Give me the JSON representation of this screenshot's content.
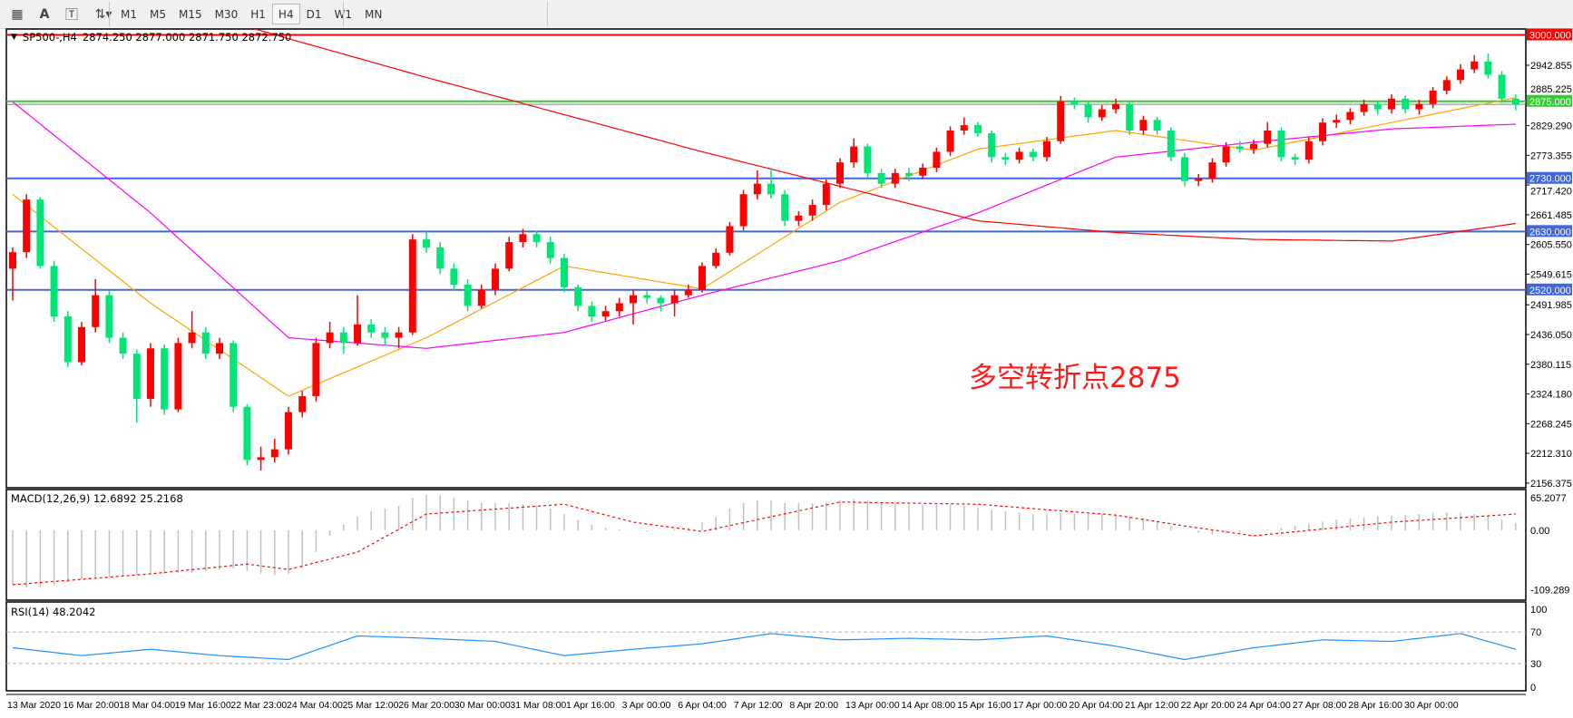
{
  "toolbar": {
    "icons": [
      "grid-fibo-icon",
      "text-a-icon",
      "text-label-icon",
      "arrows-icon"
    ],
    "timeframes": [
      "M1",
      "M5",
      "M15",
      "M30",
      "H1",
      "H4",
      "D1",
      "W1",
      "MN"
    ],
    "active_timeframe": "H4"
  },
  "header": {
    "symbol": "SP500-,H4",
    "ohlc": "2874.250 2877.000 2871.750 2872.750"
  },
  "annotation": "多空转折点2875",
  "macd_label": "MACD(12,26,9) 12.6892 25.2168",
  "rsi_label": "RSI(14) 48.2042",
  "colors": {
    "bull": "#ff0000",
    "bear": "#00e676",
    "ma_fast": "#ffa500",
    "ma_mid": "#ff00ff",
    "ma_slow": "#ff0000",
    "level_blue": "#3f66dc",
    "level_green": "#33cc33",
    "level_red": "#ff0000",
    "macd_hist": "#c0c0c0",
    "macd_signal": "#ff0000",
    "rsi": "#1e90ff"
  },
  "chart_data": {
    "type": "candlestick",
    "symbol": "SP500-",
    "timeframe": "H4",
    "price_ticks": [
      "2942.855",
      "2885.225",
      "2829.290",
      "2773.355",
      "2717.420",
      "2661.485",
      "2605.550",
      "2549.615",
      "2491.985",
      "2436.050",
      "2380.115",
      "2324.180",
      "2268.245",
      "2212.310",
      "2156.375"
    ],
    "price_range": [
      2156.375,
      3000
    ],
    "levels": [
      {
        "value": 3000,
        "label": "3000.000",
        "color": "#ff0000"
      },
      {
        "value": 2875,
        "label": "2875.000",
        "color": "#33cc33"
      },
      {
        "value": 2730,
        "label": "2730.000",
        "color": "#3f66dc"
      },
      {
        "value": 2630,
        "label": "2630.000",
        "color": "#3f66dc"
      },
      {
        "value": 2520,
        "label": "2520.000",
        "color": "#3f66dc"
      }
    ],
    "bid_line": 2872.75,
    "x_labels": [
      "13 Mar 2020",
      "16 Mar 20:00",
      "18 Mar 04:00",
      "19 Mar 16:00",
      "22 Mar 23:00",
      "24 Mar 04:00",
      "25 Mar 12:00",
      "26 Mar 20:00",
      "30 Mar 00:00",
      "31 Mar 08:00",
      "1 Apr 16:00",
      "3 Apr 00:00",
      "6 Apr 04:00",
      "7 Apr 12:00",
      "8 Apr 20:00",
      "13 Apr 00:00",
      "14 Apr 08:00",
      "15 Apr 16:00",
      "17 Apr 00:00",
      "20 Apr 04:00",
      "21 Apr 12:00",
      "22 Apr 20:00",
      "24 Apr 04:00",
      "27 Apr 08:00",
      "28 Apr 16:00",
      "30 Apr 00:00"
    ],
    "ohlc": [
      [
        2560,
        2600,
        2500,
        2591
      ],
      [
        2591,
        2700,
        2580,
        2690
      ],
      [
        2690,
        2695,
        2560,
        2565
      ],
      [
        2565,
        2575,
        2460,
        2470
      ],
      [
        2470,
        2480,
        2375,
        2384
      ],
      [
        2384,
        2460,
        2378,
        2450
      ],
      [
        2450,
        2540,
        2440,
        2510
      ],
      [
        2510,
        2518,
        2420,
        2430
      ],
      [
        2430,
        2440,
        2390,
        2400
      ],
      [
        2400,
        2408,
        2270,
        2315
      ],
      [
        2315,
        2420,
        2300,
        2410
      ],
      [
        2410,
        2418,
        2285,
        2295
      ],
      [
        2295,
        2430,
        2290,
        2420
      ],
      [
        2420,
        2480,
        2410,
        2440
      ],
      [
        2440,
        2450,
        2390,
        2400
      ],
      [
        2400,
        2430,
        2390,
        2420
      ],
      [
        2420,
        2425,
        2290,
        2300
      ],
      [
        2300,
        2305,
        2190,
        2200
      ],
      [
        2200,
        2225,
        2180,
        2205
      ],
      [
        2205,
        2240,
        2195,
        2220
      ],
      [
        2220,
        2300,
        2210,
        2290
      ],
      [
        2290,
        2330,
        2280,
        2320
      ],
      [
        2320,
        2430,
        2310,
        2420
      ],
      [
        2420,
        2460,
        2410,
        2440
      ],
      [
        2440,
        2450,
        2400,
        2420
      ],
      [
        2420,
        2510,
        2415,
        2455
      ],
      [
        2455,
        2465,
        2430,
        2440
      ],
      [
        2440,
        2450,
        2415,
        2430
      ],
      [
        2430,
        2450,
        2410,
        2440
      ],
      [
        2440,
        2625,
        2435,
        2615
      ],
      [
        2615,
        2630,
        2590,
        2600
      ],
      [
        2600,
        2610,
        2550,
        2560
      ],
      [
        2560,
        2570,
        2520,
        2530
      ],
      [
        2530,
        2540,
        2480,
        2490
      ],
      [
        2490,
        2530,
        2485,
        2520
      ],
      [
        2520,
        2570,
        2510,
        2560
      ],
      [
        2560,
        2620,
        2555,
        2610
      ],
      [
        2610,
        2635,
        2600,
        2625
      ],
      [
        2625,
        2632,
        2600,
        2610
      ],
      [
        2610,
        2620,
        2570,
        2580
      ],
      [
        2580,
        2588,
        2515,
        2525
      ],
      [
        2525,
        2530,
        2480,
        2490
      ],
      [
        2490,
        2498,
        2460,
        2470
      ],
      [
        2470,
        2490,
        2462,
        2480
      ],
      [
        2480,
        2505,
        2470,
        2495
      ],
      [
        2495,
        2520,
        2455,
        2510
      ],
      [
        2510,
        2518,
        2495,
        2505
      ],
      [
        2505,
        2510,
        2480,
        2495
      ],
      [
        2495,
        2520,
        2470,
        2510
      ],
      [
        2510,
        2530,
        2505,
        2520
      ],
      [
        2520,
        2572,
        2515,
        2565
      ],
      [
        2565,
        2598,
        2560,
        2590
      ],
      [
        2590,
        2648,
        2585,
        2640
      ],
      [
        2640,
        2708,
        2632,
        2700
      ],
      [
        2700,
        2745,
        2690,
        2720
      ],
      [
        2720,
        2750,
        2692,
        2700
      ],
      [
        2700,
        2708,
        2640,
        2650
      ],
      [
        2650,
        2668,
        2640,
        2660
      ],
      [
        2660,
        2690,
        2650,
        2680
      ],
      [
        2680,
        2728,
        2670,
        2720
      ],
      [
        2720,
        2768,
        2712,
        2760
      ],
      [
        2760,
        2805,
        2750,
        2790
      ],
      [
        2790,
        2795,
        2730,
        2740
      ],
      [
        2740,
        2748,
        2712,
        2720
      ],
      [
        2720,
        2748,
        2712,
        2740
      ],
      [
        2740,
        2750,
        2725,
        2735
      ],
      [
        2735,
        2758,
        2728,
        2750
      ],
      [
        2750,
        2788,
        2742,
        2780
      ],
      [
        2780,
        2828,
        2772,
        2820
      ],
      [
        2820,
        2845,
        2812,
        2830
      ],
      [
        2830,
        2836,
        2808,
        2815
      ],
      [
        2815,
        2820,
        2760,
        2770
      ],
      [
        2770,
        2778,
        2755,
        2765
      ],
      [
        2765,
        2788,
        2758,
        2780
      ],
      [
        2780,
        2786,
        2762,
        2770
      ],
      [
        2770,
        2808,
        2762,
        2800
      ],
      [
        2800,
        2885,
        2795,
        2875
      ],
      [
        2875,
        2882,
        2860,
        2870
      ],
      [
        2870,
        2875,
        2835,
        2845
      ],
      [
        2845,
        2868,
        2838,
        2860
      ],
      [
        2860,
        2880,
        2852,
        2870
      ],
      [
        2870,
        2876,
        2812,
        2820
      ],
      [
        2820,
        2848,
        2812,
        2840
      ],
      [
        2840,
        2846,
        2812,
        2820
      ],
      [
        2820,
        2826,
        2762,
        2770
      ],
      [
        2770,
        2778,
        2715,
        2725
      ],
      [
        2725,
        2738,
        2715,
        2730
      ],
      [
        2730,
        2768,
        2722,
        2760
      ],
      [
        2760,
        2798,
        2752,
        2790
      ],
      [
        2790,
        2800,
        2778,
        2785
      ],
      [
        2785,
        2803,
        2776,
        2795
      ],
      [
        2795,
        2836,
        2788,
        2820
      ],
      [
        2820,
        2826,
        2762,
        2770
      ],
      [
        2770,
        2776,
        2755,
        2765
      ],
      [
        2765,
        2808,
        2758,
        2800
      ],
      [
        2800,
        2843,
        2792,
        2835
      ],
      [
        2835,
        2850,
        2825,
        2840
      ],
      [
        2840,
        2862,
        2832,
        2855
      ],
      [
        2855,
        2878,
        2848,
        2870
      ],
      [
        2870,
        2876,
        2850,
        2860
      ],
      [
        2860,
        2888,
        2852,
        2880
      ],
      [
        2880,
        2886,
        2852,
        2860
      ],
      [
        2860,
        2878,
        2850,
        2870
      ],
      [
        2870,
        2902,
        2862,
        2895
      ],
      [
        2895,
        2922,
        2888,
        2915
      ],
      [
        2915,
        2945,
        2908,
        2935
      ],
      [
        2935,
        2962,
        2928,
        2950
      ],
      [
        2950,
        2965,
        2918,
        2925
      ],
      [
        2925,
        2932,
        2872,
        2880
      ],
      [
        2880,
        2888,
        2858,
        2870
      ]
    ],
    "moving_averages": [
      {
        "color": "#ffa500",
        "points": [
          [
            0,
            2700
          ],
          [
            10,
            2495
          ],
          [
            20,
            2320
          ],
          [
            30,
            2430
          ],
          [
            40,
            2565
          ],
          [
            50,
            2522
          ],
          [
            60,
            2685
          ],
          [
            70,
            2785
          ],
          [
            80,
            2820
          ],
          [
            90,
            2783
          ],
          [
            100,
            2835
          ],
          [
            109,
            2882
          ]
        ]
      },
      {
        "color": "#ff00ff",
        "points": [
          [
            0,
            2874
          ],
          [
            10,
            2665
          ],
          [
            20,
            2430
          ],
          [
            30,
            2410
          ],
          [
            40,
            2440
          ],
          [
            50,
            2510
          ],
          [
            60,
            2575
          ],
          [
            70,
            2665
          ],
          [
            80,
            2770
          ],
          [
            90,
            2798
          ],
          [
            100,
            2823
          ],
          [
            109,
            2832
          ]
        ]
      },
      {
        "color": "#ff0000",
        "points": [
          [
            0,
            3143
          ],
          [
            10,
            3068
          ],
          [
            20,
            2993
          ],
          [
            30,
            2920
          ],
          [
            40,
            2850
          ],
          [
            50,
            2780
          ],
          [
            60,
            2715
          ],
          [
            70,
            2650
          ],
          [
            80,
            2628
          ],
          [
            90,
            2615
          ],
          [
            100,
            2612
          ],
          [
            109,
            2645
          ]
        ]
      }
    ],
    "macd": {
      "ticks": [
        "65.2077",
        "0.00",
        "-109.289"
      ],
      "histogram": [
        -100,
        -105,
        -105,
        -100,
        -95,
        -90,
        -88,
        -85,
        -85,
        -82,
        -80,
        -80,
        -78,
        -78,
        -75,
        -72,
        -70,
        -75,
        -80,
        -82,
        -80,
        -70,
        -40,
        -10,
        10,
        25,
        35,
        40,
        45,
        60,
        65,
        65,
        60,
        55,
        50,
        50,
        50,
        48,
        45,
        40,
        30,
        20,
        10,
        5,
        2,
        0,
        -2,
        0,
        2,
        5,
        15,
        25,
        40,
        50,
        55,
        55,
        50,
        50,
        50,
        52,
        55,
        58,
        55,
        50,
        48,
        48,
        47,
        47,
        48,
        46,
        42,
        38,
        35,
        32,
        30,
        30,
        32,
        30,
        30,
        30,
        28,
        26,
        22,
        15,
        8,
        0,
        -5,
        -8,
        -6,
        -4,
        0,
        2,
        5,
        8,
        12,
        16,
        20,
        22,
        24,
        26,
        27,
        28,
        30,
        32,
        33,
        33,
        30,
        26,
        20,
        14
      ],
      "signal": [
        [
          0,
          -100
        ],
        [
          10,
          -80
        ],
        [
          17,
          -62
        ],
        [
          20,
          -72
        ],
        [
          25,
          -40
        ],
        [
          30,
          30
        ],
        [
          40,
          48
        ],
        [
          45,
          15
        ],
        [
          50,
          -2
        ],
        [
          60,
          52
        ],
        [
          70,
          48
        ],
        [
          80,
          28
        ],
        [
          85,
          8
        ],
        [
          90,
          -10
        ],
        [
          100,
          15
        ],
        [
          109,
          30
        ]
      ]
    },
    "rsi": {
      "ticks": [
        "100",
        "70",
        "30",
        "0"
      ],
      "levels": [
        70,
        30
      ],
      "points": [
        [
          0,
          50
        ],
        [
          5,
          40
        ],
        [
          10,
          48
        ],
        [
          15,
          40
        ],
        [
          20,
          35
        ],
        [
          25,
          65
        ],
        [
          30,
          62
        ],
        [
          35,
          58
        ],
        [
          40,
          40
        ],
        [
          45,
          48
        ],
        [
          50,
          55
        ],
        [
          55,
          68
        ],
        [
          60,
          60
        ],
        [
          65,
          62
        ],
        [
          70,
          60
        ],
        [
          75,
          65
        ],
        [
          80,
          52
        ],
        [
          85,
          35
        ],
        [
          90,
          50
        ],
        [
          95,
          60
        ],
        [
          100,
          58
        ],
        [
          105,
          68
        ],
        [
          109,
          48
        ]
      ]
    }
  }
}
